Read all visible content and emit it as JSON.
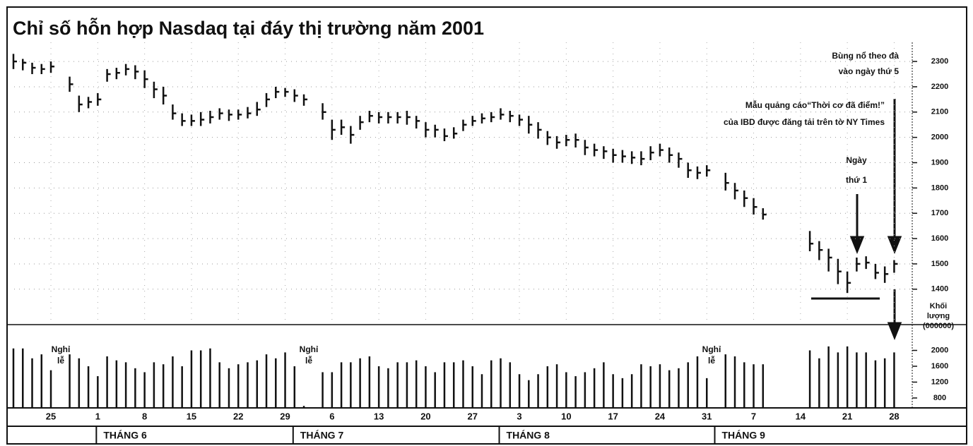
{
  "chart_data": {
    "type": "ohlc",
    "title": "Chỉ số hỗn hợp Nasdaq tại đáy thị trường năm 2001",
    "categories": [
      null,
      null,
      null,
      null,
      "25",
      null,
      null,
      null,
      null,
      "1",
      null,
      null,
      null,
      null,
      "8",
      null,
      null,
      null,
      null,
      "15",
      null,
      null,
      null,
      null,
      "22",
      null,
      null,
      null,
      null,
      "29",
      null,
      null,
      null,
      null,
      "6",
      null,
      null,
      null,
      null,
      "13",
      null,
      null,
      null,
      null,
      "20",
      null,
      null,
      null,
      null,
      "27",
      null,
      null,
      null,
      null,
      "3",
      null,
      null,
      null,
      null,
      "10",
      null,
      null,
      null,
      null,
      "17",
      null,
      null,
      null,
      null,
      "24",
      null,
      null,
      null,
      null,
      "31",
      null,
      null,
      null,
      null,
      "7",
      null,
      null,
      null,
      null,
      "14",
      null,
      null,
      null,
      null,
      "21",
      null,
      null,
      null,
      null,
      "28"
    ],
    "high": [
      2330,
      2310,
      2295,
      2290,
      2300,
      null,
      2240,
      2165,
      2160,
      2175,
      2270,
      2275,
      2290,
      2285,
      2265,
      2220,
      2200,
      2130,
      2095,
      2090,
      2100,
      2105,
      2115,
      2110,
      2110,
      2120,
      2140,
      2175,
      2200,
      2195,
      2190,
      2170,
      null,
      2135,
      2070,
      2070,
      2045,
      2085,
      2105,
      2100,
      2100,
      2100,
      2105,
      2085,
      2060,
      2050,
      2035,
      2040,
      2070,
      2085,
      2095,
      2100,
      2115,
      2105,
      2090,
      2085,
      2060,
      2025,
      2005,
      2010,
      2015,
      1990,
      1975,
      1965,
      1955,
      1950,
      1945,
      1945,
      1965,
      1975,
      1960,
      1940,
      1900,
      1885,
      1890,
      null,
      1860,
      1820,
      1790,
      1760,
      1720,
      null,
      null,
      null,
      null,
      1630,
      1590,
      1560,
      1520,
      1470,
      1525,
      1530,
      1500,
      1490,
      1515
    ],
    "low": [
      2270,
      2265,
      2250,
      2250,
      2255,
      null,
      2180,
      2100,
      2115,
      2125,
      2220,
      2230,
      2245,
      2230,
      2195,
      2155,
      2130,
      2070,
      2045,
      2045,
      2045,
      2055,
      2070,
      2065,
      2070,
      2075,
      2085,
      2120,
      2155,
      2160,
      2140,
      2125,
      null,
      2070,
      1990,
      2010,
      1975,
      2030,
      2060,
      2055,
      2055,
      2055,
      2050,
      2035,
      2000,
      2000,
      1985,
      1995,
      2025,
      2045,
      2055,
      2060,
      2070,
      2060,
      2045,
      2015,
      1995,
      1970,
      1955,
      1965,
      1960,
      1930,
      1925,
      1915,
      1900,
      1900,
      1895,
      1890,
      1910,
      1925,
      1900,
      1880,
      1840,
      1835,
      1845,
      null,
      1790,
      1755,
      1725,
      1695,
      1675,
      null,
      null,
      null,
      null,
      1550,
      1515,
      1470,
      1420,
      1385,
      1470,
      1480,
      1440,
      1425,
      1465
    ],
    "close": [
      2300,
      2295,
      2275,
      2270,
      2280,
      null,
      2210,
      2130,
      2140,
      2150,
      2250,
      2255,
      2270,
      2260,
      2230,
      2190,
      2165,
      2095,
      2065,
      2065,
      2070,
      2080,
      2095,
      2090,
      2090,
      2095,
      2110,
      2150,
      2180,
      2180,
      2165,
      2150,
      null,
      2100,
      2030,
      2040,
      2010,
      2060,
      2085,
      2080,
      2080,
      2080,
      2080,
      2065,
      2030,
      2030,
      2005,
      2015,
      2050,
      2065,
      2075,
      2080,
      2090,
      2085,
      2070,
      2050,
      2030,
      2000,
      1980,
      1990,
      1990,
      1960,
      1950,
      1945,
      1930,
      1925,
      1920,
      1915,
      1940,
      1950,
      1930,
      1915,
      1870,
      1860,
      1870,
      null,
      1820,
      1790,
      1760,
      1725,
      1695,
      null,
      null,
      null,
      null,
      1580,
      1555,
      1525,
      1470,
      1425,
      1500,
      1505,
      1465,
      1460,
      1500
    ],
    "volume": [
      2050,
      2050,
      1800,
      1900,
      1500,
      null,
      1900,
      1800,
      1600,
      1350,
      1850,
      1750,
      1700,
      1550,
      1450,
      1700,
      1650,
      1850,
      1600,
      2000,
      2000,
      2050,
      1700,
      1550,
      1650,
      1700,
      1750,
      1900,
      1800,
      1950,
      1600,
      600,
      null,
      1450,
      1450,
      1700,
      1700,
      1800,
      1850,
      1600,
      1550,
      1700,
      1700,
      1750,
      1600,
      1450,
      1700,
      1700,
      1750,
      1600,
      1400,
      1750,
      1800,
      1700,
      1400,
      1250,
      1400,
      1600,
      1650,
      1450,
      1350,
      1450,
      1550,
      1700,
      1400,
      1300,
      1400,
      1650,
      1600,
      1650,
      1500,
      1550,
      1700,
      1850,
      1300,
      null,
      1900,
      1850,
      1700,
      1650,
      1650,
      null,
      null,
      null,
      null,
      2000,
      1800,
      2100,
      1950,
      2100,
      1950,
      1950,
      1750,
      1800,
      1950
    ],
    "ylim": [
      1260,
      2515
    ],
    "yticks": [
      1400,
      1500,
      1600,
      1700,
      1800,
      1900,
      2000,
      2100,
      2200,
      2300
    ],
    "volume_ylim": [
      550,
      2650
    ],
    "volume_yticks": [
      800,
      1200,
      1600,
      2000
    ],
    "volume_label": [
      "Khối",
      "lượng",
      "(000000)"
    ],
    "months": [
      "THÁNG 6",
      "THÁNG 7",
      "THÁNG 8",
      "THÁNG 9"
    ],
    "annotations": {
      "breakout": [
        "Bùng nổ theo đà",
        "vào ngày thứ 5"
      ],
      "ad": [
        "Mẫu quảng cáo“Thời cơ đã điểm!”",
        "của IBD được đăng tải trên tờ NY Times"
      ],
      "day1": [
        "Ngày",
        "thứ 1"
      ],
      "holidays": [
        [
          "Nghỉ",
          "lễ"
        ],
        [
          "Nghỉ",
          "lễ"
        ],
        [
          "Nghỉ",
          "lễ"
        ]
      ]
    },
    "grid": true,
    "color": "#111111"
  }
}
